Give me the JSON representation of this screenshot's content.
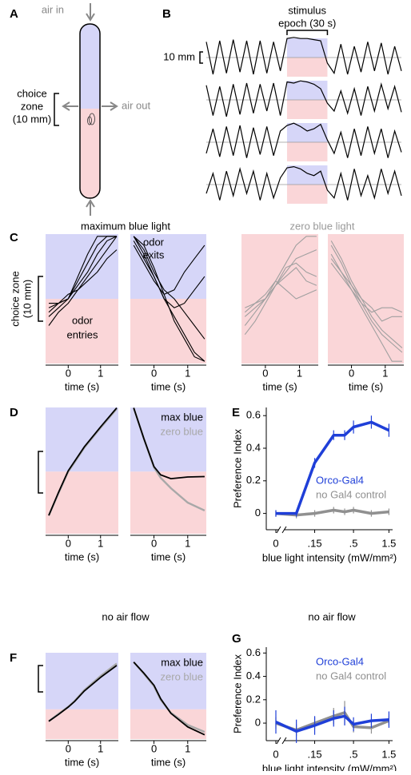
{
  "panel_A": {
    "label": "A",
    "air_in": "air in",
    "air_out": "air out",
    "choice_zone": [
      "choice",
      "zone",
      "(10 mm)"
    ]
  },
  "chart_data": [
    {
      "type": "traces",
      "panel": "B",
      "title": [
        "stimulus",
        "epoch (30 s)"
      ],
      "scale_label": "10 mm",
      "x": [
        0,
        5,
        10,
        15,
        20,
        25,
        30,
        35,
        40,
        45,
        50,
        55,
        60,
        65,
        70,
        75,
        80,
        85,
        90,
        95,
        100,
        105,
        110,
        115,
        120,
        125,
        130,
        135,
        140,
        145
      ],
      "stimulus": [
        60,
        90
      ],
      "color": "#000",
      "series": [
        {
          "values": [
            14,
            -15,
            15,
            -14,
            16,
            -13,
            15,
            -15,
            15,
            -14,
            14,
            -12,
            17,
            18,
            17,
            17,
            16,
            15,
            -5,
            -14,
            12,
            -15,
            10,
            -13,
            14,
            -12,
            13,
            -15,
            10,
            -12
          ]
        },
        {
          "values": [
            13,
            -14,
            12,
            -15,
            14,
            -13,
            15,
            -12,
            14,
            -10,
            15,
            -14,
            16,
            15,
            17,
            16,
            14,
            10,
            -3,
            -10,
            8,
            -12,
            10,
            -14,
            12,
            -10,
            14,
            -8,
            12,
            -11
          ]
        },
        {
          "values": [
            -10,
            12,
            -13,
            14,
            -12,
            15,
            -14,
            13,
            -11,
            14,
            -12,
            10,
            15,
            17,
            14,
            10,
            12,
            16,
            2,
            -10,
            9,
            -14,
            12,
            -12,
            14,
            -10,
            12,
            -14,
            10,
            -9
          ]
        },
        {
          "values": [
            -8,
            10,
            -14,
            12,
            -10,
            14,
            -8,
            12,
            -14,
            10,
            -12,
            6,
            15,
            16,
            14,
            10,
            8,
            12,
            -5,
            -12,
            10,
            -14,
            14,
            -10,
            8,
            -12,
            14,
            -8,
            12,
            -10
          ]
        }
      ]
    },
    {
      "type": "trajectories",
      "panel": "C",
      "titles": [
        "maximum blue light",
        "zero blue light"
      ],
      "annotations": [
        [
          "odor",
          "exits"
        ],
        [
          "odor",
          "entries"
        ]
      ],
      "ylabel": [
        "choice zone",
        "(10 mm)"
      ],
      "xlabel": "time (s)",
      "x": [
        -0.6,
        -0.3,
        0,
        0.3,
        0.6,
        0.9,
        1.2,
        1.5
      ],
      "xlim": [
        -0.7,
        1.55
      ],
      "xticks": [
        0,
        1
      ],
      "ylim": [
        -14.5,
        14.5
      ],
      "colors": {
        "blue": "#d6d6f8",
        "pink": "#fad6d8"
      },
      "subplots": [
        {
          "background": "split",
          "color": "#000",
          "series": [
            [
              -2,
              -1,
              0,
              4,
              8,
              12,
              14,
              14
            ],
            [
              -4,
              -2,
              0,
              3,
              6,
              10,
              13,
              14
            ],
            [
              -3,
              -1,
              1,
              2,
              5,
              8,
              11,
              14
            ],
            [
              -1,
              -1,
              0,
              5,
              10,
              14,
              14,
              14
            ],
            [
              -6,
              -3,
              -1,
              2,
              4,
              6,
              9,
              11
            ]
          ]
        },
        {
          "background": "split",
          "color": "#000",
          "series": [
            [
              14,
              10,
              5,
              0,
              -4,
              -8,
              -12,
              -14
            ],
            [
              12,
              8,
              4,
              1,
              2,
              6,
              9,
              12
            ],
            [
              14,
              11,
              6,
              2,
              0,
              -3,
              -6,
              -9
            ],
            [
              13,
              9,
              5,
              0,
              -2,
              -1,
              2,
              5
            ],
            [
              14,
              12,
              7,
              1,
              -5,
              -9,
              -13,
              -14
            ]
          ]
        },
        {
          "background": "pink",
          "color": "#a0a0a0",
          "series": [
            [
              -8,
              -5,
              -1,
              3,
              6,
              9,
              10,
              11
            ],
            [
              -4,
              -2,
              0,
              3,
              7,
              8,
              6,
              5
            ],
            [
              -3,
              -1,
              1,
              4,
              2,
              0,
              1,
              2
            ],
            [
              -6,
              -3,
              0,
              4,
              8,
              12,
              14,
              14
            ],
            [
              -2,
              -1,
              0,
              3,
              5,
              7,
              4,
              3
            ]
          ]
        },
        {
          "background": "pink",
          "color": "#a0a0a0",
          "series": [
            [
              12,
              8,
              3,
              -1,
              -5,
              -8,
              -10,
              -12
            ],
            [
              8,
              5,
              2,
              -1,
              -3,
              -2,
              -2,
              -3
            ],
            [
              10,
              6,
              2,
              -2,
              -6,
              -10,
              -14,
              -14
            ],
            [
              13,
              9,
              4,
              0,
              -2,
              -5,
              -4,
              -4
            ],
            [
              9,
              6,
              3,
              0,
              -4,
              -7,
              -9,
              -11
            ]
          ]
        }
      ]
    },
    {
      "type": "mean-trajectories",
      "panel": "D",
      "xlabel": "time (s)",
      "x": [
        -0.6,
        -0.3,
        0,
        0.2,
        0.5,
        1,
        1.5
      ],
      "xlim": [
        -0.7,
        1.55
      ],
      "xticks": [
        0,
        1
      ],
      "ylim": [
        -15,
        15.5
      ],
      "colors": {
        "blue": "#d6d6f8",
        "pink": "#fad6d8"
      },
      "series": [
        {
          "name": "max blue",
          "color": "#000",
          "values": [
            [
              -10.6,
              -5,
              0.2,
              2.5,
              6,
              10.8,
              15.4
            ],
            [
              15.4,
              8,
              1.2,
              -0.8,
              -1.7,
              -1.3,
              -1.2
            ]
          ]
        },
        {
          "name": "zero blue",
          "color": "#a8a8a8",
          "values": [
            [
              -10.6,
              -5.2,
              0,
              2.3,
              5.8,
              10.6,
              15.2
            ],
            [
              15.4,
              8,
              1,
              -1.5,
              -4,
              -7.5,
              -9.4
            ]
          ]
        }
      ]
    },
    {
      "type": "line",
      "panel": "E",
      "ylabel": "Preference Index",
      "xlabel": "blue light intensity (mW/mm²)",
      "xscale": "log",
      "x": [
        0,
        0.085,
        0.15,
        0.27,
        0.38,
        0.5,
        0.87,
        1.5
      ],
      "xlim": [
        0.045,
        1.6
      ],
      "xticks": [
        0,
        {
          "value": 0.15,
          "label": ".15"
        },
        {
          "value": 0.5,
          "label": ".5"
        },
        1.5
      ],
      "ylim": [
        -0.1,
        0.65
      ],
      "yticks": [
        0,
        0.2,
        0.4,
        0.6
      ],
      "series": [
        {
          "name": "Orco-Gal4",
          "color": "#1f3fd8",
          "values": [
            0,
            0,
            0.31,
            0.48,
            0.48,
            0.53,
            0.56,
            0.51
          ],
          "errors": [
            0.02,
            0.02,
            0.03,
            0.03,
            0.03,
            0.04,
            0.04,
            0.04
          ]
        },
        {
          "name": "no Gal4 control",
          "color": "#909090",
          "values": [
            0,
            -0.01,
            0,
            0.02,
            0.01,
            0.02,
            0,
            0.01
          ],
          "errors": [
            0.02,
            0.02,
            0.02,
            0.02,
            0.02,
            0.02,
            0.02,
            0.02
          ]
        }
      ]
    },
    {
      "type": "mean-trajectories",
      "panel": "F",
      "title": "no air flow",
      "xlabel": "time (s)",
      "x": [
        -0.6,
        -0.3,
        0,
        0.2,
        0.5,
        1,
        1.5
      ],
      "xlim": [
        -0.7,
        1.55
      ],
      "xticks": [
        0,
        1
      ],
      "ylim": [
        -10.5,
        20
      ],
      "colors": {
        "blue": "#d6d6f8",
        "pink": "#fad6d8"
      },
      "series": [
        {
          "name": "max blue",
          "color": "#000",
          "values": [
            [
              -4.2,
              -1.8,
              0.8,
              2.8,
              6.5,
              11.3,
              15.5
            ],
            [
              16.7,
              12.8,
              8.5,
              3.7,
              -1.4,
              -6.2,
              -9
            ]
          ]
        },
        {
          "name": "zero blue",
          "color": "#a8a8a8",
          "values": [
            [
              -4.2,
              -1.6,
              0.9,
              3,
              6.8,
              11.8,
              16.2
            ],
            [
              16.7,
              12.6,
              8.2,
              3.4,
              -1.2,
              -5.5,
              -8
            ]
          ]
        }
      ]
    },
    {
      "type": "line",
      "panel": "G",
      "title": "no air flow",
      "ylabel": "Preference Index",
      "xlabel": "blue light intensity (mW/mm²)",
      "xscale": "log",
      "x": [
        0,
        0.085,
        0.15,
        0.27,
        0.38,
        0.5,
        0.87,
        1.5
      ],
      "xlim": [
        0.045,
        1.6
      ],
      "xticks": [
        0,
        {
          "value": 0.15,
          "label": ".15"
        },
        {
          "value": 0.5,
          "label": ".5"
        },
        1.5
      ],
      "ylim": [
        -0.15,
        0.65
      ],
      "yticks": [
        0,
        0.2,
        0.4,
        0.6
      ],
      "series": [
        {
          "name": "Orco-Gal4",
          "color": "#1f3fd8",
          "values": [
            0.01,
            -0.07,
            -0.02,
            0.04,
            0.06,
            -0.01,
            0.02,
            0.03
          ],
          "errors": [
            0.1,
            0.1,
            0.08,
            0.07,
            0.08,
            0.06,
            0.06,
            0.07
          ]
        },
        {
          "name": "no Gal4 control",
          "color": "#909090",
          "values": [
            0,
            -0.06,
            0,
            0.06,
            0.09,
            -0.03,
            -0.04,
            0.02
          ],
          "errors": [
            0.05,
            0.05,
            0.05,
            0.07,
            0.1,
            0.05,
            0.05,
            0.04
          ]
        }
      ]
    }
  ]
}
